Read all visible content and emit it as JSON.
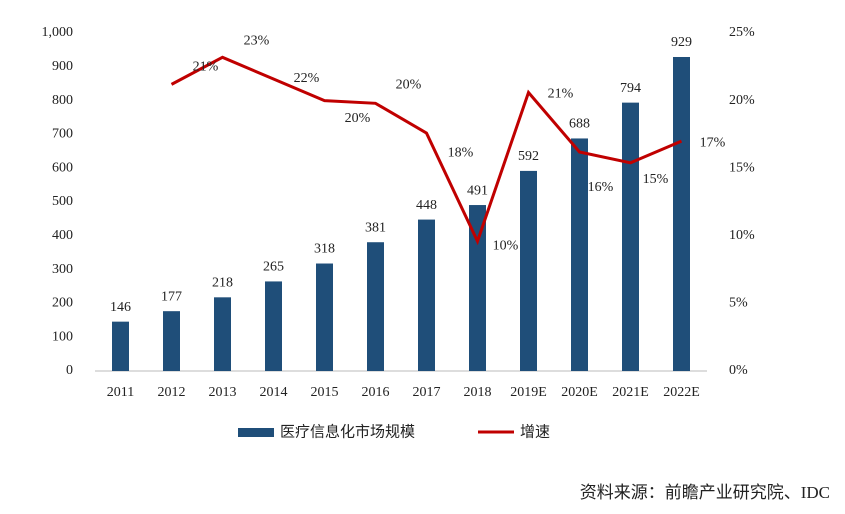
{
  "chart_data": {
    "type": "bar-line",
    "categories": [
      "2011",
      "2012",
      "2013",
      "2014",
      "2015",
      "2016",
      "2017",
      "2018",
      "2019E",
      "2020E",
      "2021E",
      "2022E"
    ],
    "series": [
      {
        "name": "医疗信息化市场规模",
        "color": "#1f4e79",
        "type": "bar",
        "values": [
          146,
          177,
          218,
          265,
          318,
          381,
          448,
          491,
          592,
          688,
          794,
          929
        ]
      },
      {
        "name": "增速",
        "color": "#c00000",
        "type": "line",
        "axis": "y2",
        "values": [
          null,
          21.2,
          23.2,
          21.6,
          20.0,
          19.8,
          17.6,
          9.6,
          20.6,
          16.2,
          15.4,
          17.0
        ],
        "value_labels": [
          null,
          "21%",
          "23%",
          "22%",
          "20%",
          "20%",
          "18%",
          "10%",
          "21%",
          "16%",
          "15%",
          "17%"
        ]
      }
    ],
    "ylim": [
      0,
      1000
    ],
    "yticks": [
      0,
      100,
      200,
      300,
      400,
      500,
      600,
      700,
      800,
      900,
      {
        "value": 1000,
        "label": "1,000"
      }
    ],
    "y2lim": [
      0,
      25
    ],
    "y2ticks": [
      {
        "value": 0,
        "label": "0%"
      },
      {
        "value": 5,
        "label": "5%"
      },
      {
        "value": 10,
        "label": "10%"
      },
      {
        "value": 15,
        "label": "15%"
      },
      {
        "value": 20,
        "label": "20%"
      },
      {
        "value": 25,
        "label": "25%"
      }
    ],
    "legend": "bottom",
    "source": "资料来源：前瞻产业研究院、IDC"
  }
}
